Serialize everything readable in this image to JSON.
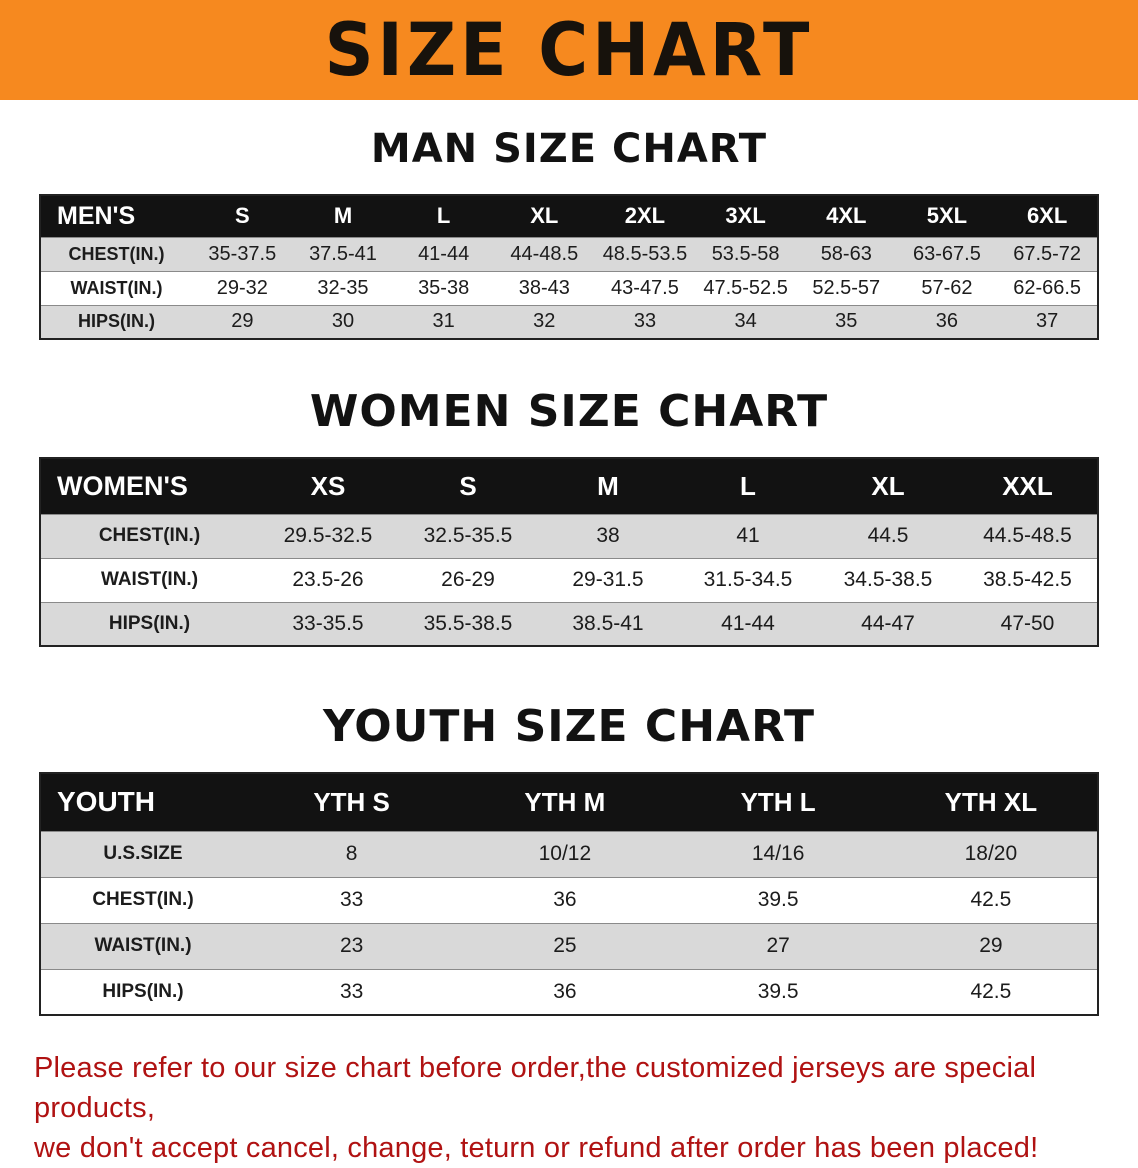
{
  "banner": {
    "title": "SIZE CHART",
    "background_color": "#f6891f"
  },
  "sections": [
    {
      "id": "men",
      "heading": "MAN SIZE CHART",
      "table": {
        "header": [
          "MEN'S",
          "S",
          "M",
          "L",
          "XL",
          "2XL",
          "3XL",
          "4XL",
          "5XL",
          "6XL"
        ],
        "rows": [
          [
            "CHEST(IN.)",
            "35-37.5",
            "37.5-41",
            "41-44",
            "44-48.5",
            "48.5-53.5",
            "53.5-58",
            "58-63",
            "63-67.5",
            "67.5-72"
          ],
          [
            "WAIST(IN.)",
            "29-32",
            "32-35",
            "35-38",
            "38-43",
            "43-47.5",
            "47.5-52.5",
            "52.5-57",
            "57-62",
            "62-66.5"
          ],
          [
            "HIPS(IN.)",
            "29",
            "30",
            "31",
            "32",
            "33",
            "34",
            "35",
            "36",
            "37"
          ]
        ]
      }
    },
    {
      "id": "women",
      "heading": "WOMEN SIZE CHART",
      "table": {
        "header": [
          "WOMEN'S",
          "XS",
          "S",
          "M",
          "L",
          "XL",
          "XXL"
        ],
        "rows": [
          [
            "CHEST(IN.)",
            "29.5-32.5",
            "32.5-35.5",
            "38",
            "41",
            "44.5",
            "44.5-48.5"
          ],
          [
            "WAIST(IN.)",
            "23.5-26",
            "26-29",
            "29-31.5",
            "31.5-34.5",
            "34.5-38.5",
            "38.5-42.5"
          ],
          [
            "HIPS(IN.)",
            "33-35.5",
            "35.5-38.5",
            "38.5-41",
            "41-44",
            "44-47",
            "47-50"
          ]
        ]
      }
    },
    {
      "id": "youth",
      "heading": "YOUTH SIZE CHART",
      "table": {
        "header": [
          "YOUTH",
          "YTH S",
          "YTH M",
          "YTH L",
          "YTH XL"
        ],
        "rows": [
          [
            "U.S.SIZE",
            "8",
            "10/12",
            "14/16",
            "18/20"
          ],
          [
            "CHEST(IN.)",
            "33",
            "36",
            "39.5",
            "42.5"
          ],
          [
            "WAIST(IN.)",
            "23",
            "25",
            "27",
            "29"
          ],
          [
            "HIPS(IN.)",
            "33",
            "36",
            "39.5",
            "42.5"
          ]
        ]
      }
    }
  ],
  "footer": {
    "line1": "Please refer to our size chart before order,the customized jerseys are special products,",
    "line2": "we don't accept cancel, change, teturn or refund after order has been placed!",
    "text_color": "#b01212"
  },
  "colors": {
    "banner_bg": "#f6891f",
    "table_header_bg": "#121212",
    "table_header_text": "#ffffff",
    "stripe_row_bg": "#d9d9d9",
    "disclaimer_text": "#b01212"
  }
}
